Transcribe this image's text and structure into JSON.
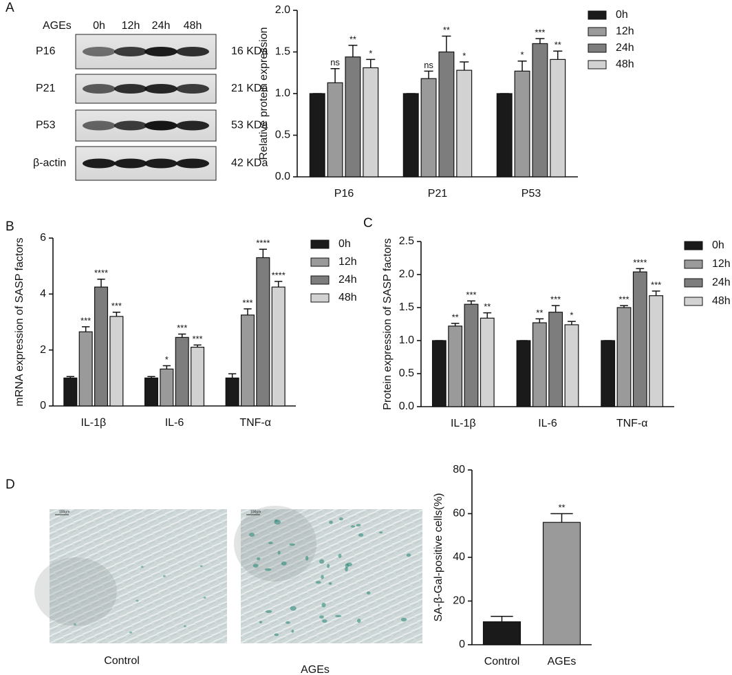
{
  "panel_labels": [
    "A",
    "B",
    "C",
    "D"
  ],
  "blot": {
    "header": "AGEs",
    "lanes": [
      "0h",
      "12h",
      "24h",
      "48h"
    ],
    "rows": [
      {
        "protein": "P16",
        "size": "16 KDa"
      },
      {
        "protein": "P21",
        "size": "21 KDa"
      },
      {
        "protein": "P53",
        "size": "53 KDa"
      },
      {
        "protein": "β-actin",
        "size": "42 KDa"
      }
    ]
  },
  "images": [
    {
      "caption": "Control",
      "scale_bar": "100μm"
    },
    {
      "caption": "AGEs",
      "scale_bar": "100μm"
    }
  ],
  "chart_data": [
    {
      "type": "bar",
      "y_label": "Relative protein expression",
      "categories": [
        "P16",
        "P21",
        "P53"
      ],
      "ylim": [
        0,
        2
      ],
      "yticks": [
        {
          "value": 0,
          "label": "0.0"
        },
        {
          "value": 0.5,
          "label": "0.5"
        },
        {
          "value": 1,
          "label": "1.0"
        },
        {
          "value": 1.5,
          "label": "1.5"
        },
        {
          "value": 2,
          "label": "2.0"
        }
      ],
      "series": [
        {
          "name": "0h",
          "color": "#1a1a1a",
          "values": [
            1,
            1,
            1
          ],
          "errors": [
            0,
            0,
            0
          ],
          "annotations": [
            null,
            null,
            null
          ]
        },
        {
          "name": "12h",
          "color": "#9a9a9a",
          "values": [
            1.13,
            1.18,
            1.27
          ],
          "errors": [
            0.17,
            0.09,
            0.12
          ],
          "annotations": [
            "ns",
            "ns",
            "*"
          ]
        },
        {
          "name": "24h",
          "color": "#7d7d7d",
          "values": [
            1.44,
            1.5,
            1.6
          ],
          "errors": [
            0.14,
            0.19,
            0.06
          ],
          "annotations": [
            "**",
            "**",
            "***"
          ]
        },
        {
          "name": "48h",
          "color": "#d2d2d2",
          "values": [
            1.31,
            1.28,
            1.41
          ],
          "errors": [
            0.1,
            0.1,
            0.1
          ],
          "annotations": [
            "*",
            "*",
            "**"
          ]
        }
      ]
    },
    {
      "type": "bar",
      "y_label": "mRNA expression of SASP factors",
      "categories": [
        "IL-1β",
        "IL-6",
        "TNF-α"
      ],
      "ylim": [
        0,
        6
      ],
      "yticks": [
        0,
        2,
        4,
        6
      ],
      "series": [
        {
          "name": "0h",
          "color": "#1a1a1a",
          "values": [
            1,
            1,
            1
          ],
          "errors": [
            0.05,
            0.05,
            0.15
          ],
          "annotations": [
            null,
            null,
            null
          ]
        },
        {
          "name": "12h",
          "color": "#9a9a9a",
          "values": [
            2.65,
            1.32,
            3.25
          ],
          "errors": [
            0.18,
            0.12,
            0.22
          ],
          "annotations": [
            "***",
            "*",
            "***"
          ]
        },
        {
          "name": "24h",
          "color": "#7d7d7d",
          "values": [
            4.25,
            2.45,
            5.3
          ],
          "errors": [
            0.28,
            0.12,
            0.3
          ],
          "annotations": [
            "****",
            "***",
            "****"
          ]
        },
        {
          "name": "48h",
          "color": "#d2d2d2",
          "values": [
            3.2,
            2.1,
            4.25
          ],
          "errors": [
            0.15,
            0.08,
            0.2
          ],
          "annotations": [
            "***",
            "***",
            "****"
          ]
        }
      ]
    },
    {
      "type": "bar",
      "y_label": "Protein expression of SASP factors",
      "categories": [
        "IL-1β",
        "IL-6",
        "TNF-α"
      ],
      "ylim": [
        0,
        2.5
      ],
      "yticks": [
        {
          "value": 0,
          "label": "0.0"
        },
        {
          "value": 0.5,
          "label": "0.5"
        },
        {
          "value": 1,
          "label": "1.0"
        },
        {
          "value": 1.5,
          "label": "1.5"
        },
        {
          "value": 2,
          "label": "2.0"
        },
        {
          "value": 2.5,
          "label": "2.5"
        }
      ],
      "series": [
        {
          "name": "0h",
          "color": "#1a1a1a",
          "values": [
            1,
            1,
            1
          ],
          "errors": [
            0,
            0,
            0
          ],
          "annotations": [
            null,
            null,
            null
          ]
        },
        {
          "name": "12h",
          "color": "#9a9a9a",
          "values": [
            1.22,
            1.27,
            1.5
          ],
          "errors": [
            0.04,
            0.06,
            0.03
          ],
          "annotations": [
            "**",
            "**",
            "***"
          ]
        },
        {
          "name": "24h",
          "color": "#7d7d7d",
          "values": [
            1.55,
            1.43,
            2.04
          ],
          "errors": [
            0.05,
            0.1,
            0.05
          ],
          "annotations": [
            "***",
            "***",
            "****"
          ]
        },
        {
          "name": "48h",
          "color": "#d2d2d2",
          "values": [
            1.34,
            1.24,
            1.68
          ],
          "errors": [
            0.08,
            0.05,
            0.07
          ],
          "annotations": [
            "**",
            "*",
            "***"
          ]
        }
      ]
    },
    {
      "type": "bar",
      "y_label": "SA-β-Gal-positive cells(%)",
      "categories": [
        "Control",
        "AGEs"
      ],
      "ylim": [
        0,
        80
      ],
      "yticks": [
        0,
        20,
        40,
        60,
        80
      ],
      "values": [
        10.5,
        56
      ],
      "errors": [
        2.5,
        4
      ],
      "colors": [
        "#1a1a1a",
        "#9a9a9a"
      ],
      "annotations": [
        null,
        "**"
      ]
    }
  ]
}
